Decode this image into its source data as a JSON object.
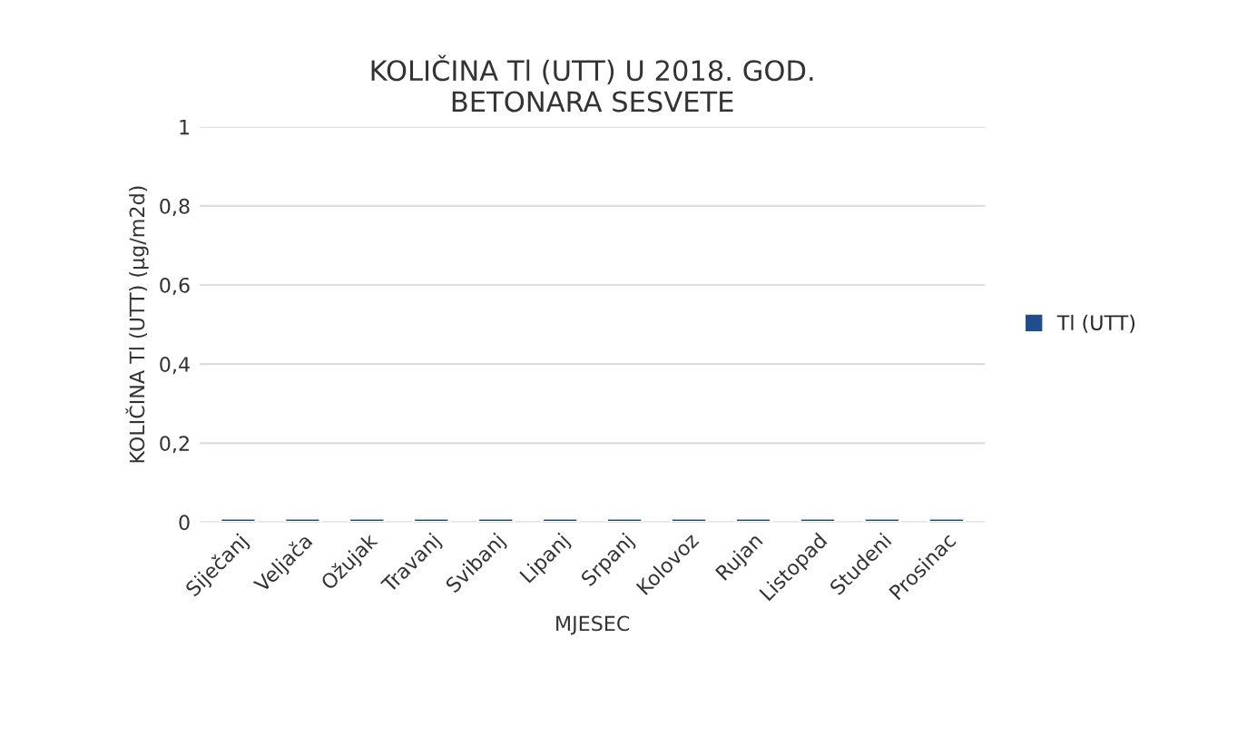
{
  "chart_data": {
    "type": "bar",
    "title": "KOLIČINA Tl (UTT) U 2018. GOD.\nBETONARA SESVETE",
    "xlabel": "MJESEC",
    "ylabel": "KOLIČINA Tl (UTT) (µg/m2d)",
    "categories": [
      "Siječanj",
      "Veljača",
      "Ožujak",
      "Travanj",
      "Svibanj",
      "Lipanj",
      "Srpanj",
      "Kolovoz",
      "Rujan",
      "Listopad",
      "Studeni",
      "Prosinac"
    ],
    "series": [
      {
        "name": "Tl (UTT)",
        "color": "#1f4e8c",
        "values": [
          0.01,
          0.01,
          0.01,
          0.01,
          0.01,
          0.01,
          0.01,
          0.01,
          0.01,
          0.01,
          0.01,
          0.01
        ]
      }
    ],
    "ylim": [
      0,
      1
    ],
    "yticks": [
      0,
      {
        "value": 0.2,
        "label": "0,2"
      },
      {
        "value": 0.4,
        "label": "0,4"
      },
      {
        "value": 0.6,
        "label": "0,6"
      },
      {
        "value": 0.8,
        "label": "0,8"
      },
      1
    ],
    "grid": "y",
    "legend": "right"
  }
}
